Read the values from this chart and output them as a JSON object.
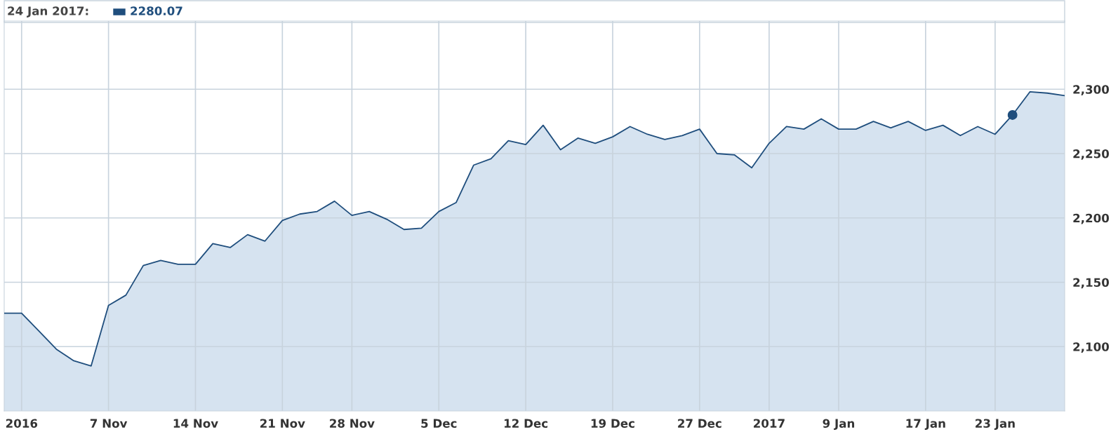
{
  "chart_data": {
    "type": "area",
    "annotations": [
      "24 Jan 2017:",
      "2280.07"
    ],
    "categories": [
      null,
      "2016",
      null,
      null,
      null,
      null,
      "7 Nov",
      null,
      null,
      null,
      null,
      "14 Nov",
      null,
      null,
      null,
      null,
      "21 Nov",
      null,
      null,
      null,
      "28 Nov",
      null,
      null,
      null,
      null,
      "5 Dec",
      null,
      null,
      null,
      null,
      "12 Dec",
      null,
      null,
      null,
      null,
      "19 Dec",
      null,
      null,
      null,
      null,
      "27 Dec",
      null,
      null,
      null,
      "2017",
      null,
      null,
      null,
      "9 Jan",
      null,
      null,
      null,
      null,
      "17 Jan",
      null,
      null,
      null,
      "23 Jan",
      null,
      null,
      null,
      null
    ],
    "series": [
      {
        "color": "#1f4e7d",
        "values": [
          2126,
          2126,
          2112,
          2098,
          2089,
          2085,
          2132,
          2140,
          2163,
          2167,
          2164,
          2164,
          2180,
          2177,
          2187,
          2182,
          2198,
          2203,
          2205,
          2213,
          2202,
          2205,
          2199,
          2191,
          2192,
          2205,
          2212,
          2241,
          2246,
          2260,
          2257,
          2272,
          2253,
          2262,
          2258,
          2263,
          2271,
          2265,
          2261,
          2264,
          2269,
          2250,
          2249,
          2239,
          2258,
          2271,
          2269,
          2277,
          2269,
          2269,
          2275,
          2270,
          2275,
          2268,
          2272,
          2264,
          2271,
          2265,
          2280,
          2298,
          2297,
          2295
        ]
      },
      {
        "type": "scatter",
        "color": "#1f4e7d",
        "marker": "circle",
        "values": [
          null,
          null,
          null,
          null,
          null,
          null,
          null,
          null,
          null,
          null,
          null,
          null,
          null,
          null,
          null,
          null,
          null,
          null,
          null,
          null,
          null,
          null,
          null,
          null,
          null,
          null,
          null,
          null,
          null,
          null,
          null,
          null,
          null,
          null,
          null,
          null,
          null,
          null,
          null,
          null,
          null,
          null,
          null,
          null,
          null,
          null,
          null,
          null,
          null,
          null,
          null,
          null,
          null,
          null,
          null,
          null,
          null,
          null,
          2280,
          null,
          null,
          null
        ]
      }
    ],
    "ylim": [
      2050,
      2353
    ],
    "yticks": [
      {
        "value": 2100,
        "label": "2,100"
      },
      {
        "value": 2150,
        "label": "2,150"
      },
      {
        "value": 2200,
        "label": "2,200"
      },
      {
        "value": 2250,
        "label": "2,250"
      },
      {
        "value": 2300,
        "label": "2,300"
      }
    ],
    "grid": true
  }
}
